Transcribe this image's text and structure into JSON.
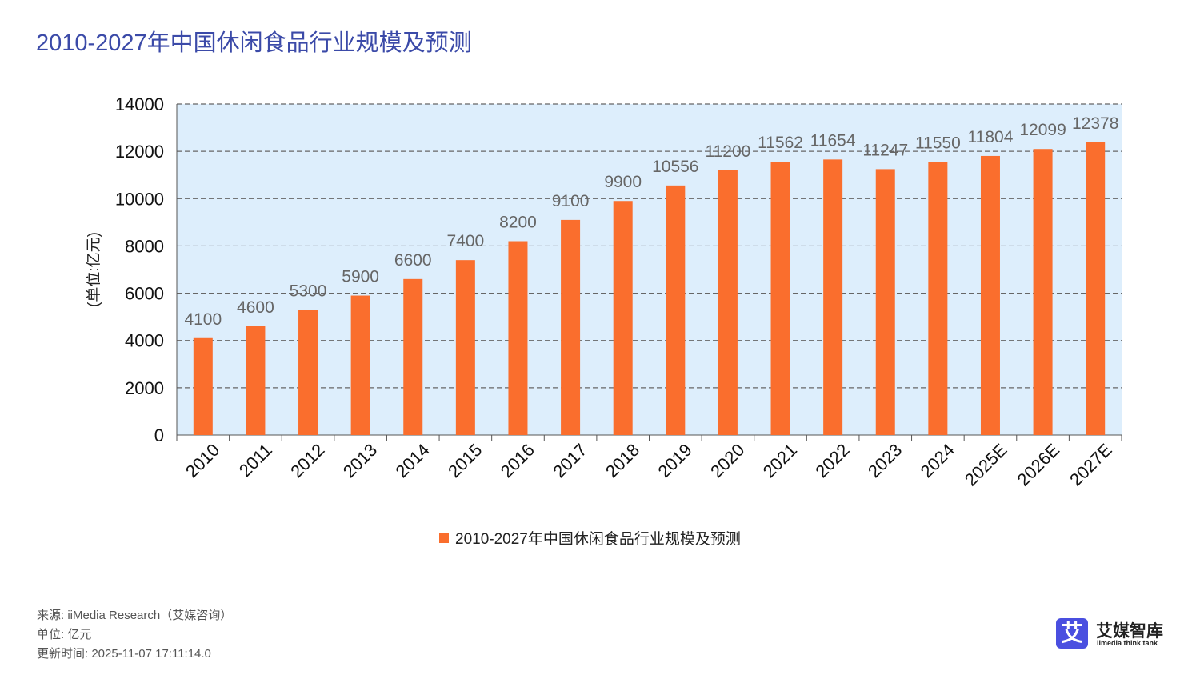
{
  "title": "2010-2027年中国休闲食品行业规模及预测",
  "footer": {
    "source": "来源: iiMedia Research（艾媒咨询）",
    "unit": "单位: 亿元",
    "updated": "更新时间: 2025-11-07 17:11:14.0"
  },
  "logo": {
    "mark": "艾",
    "name": "艾媒智库",
    "tagline": "iimedia think tank"
  },
  "chart_data": {
    "type": "bar",
    "title": "",
    "ylabel": "(单位:亿元)",
    "xlabel": "",
    "ylim": [
      0,
      14000
    ],
    "yticks": [
      0,
      2000,
      4000,
      6000,
      8000,
      10000,
      12000,
      14000
    ],
    "grid": true,
    "legend_position": "bottom",
    "categories": [
      "2010",
      "2011",
      "2012",
      "2013",
      "2014",
      "2015",
      "2016",
      "2017",
      "2018",
      "2019",
      "2020",
      "2021",
      "2022",
      "2023",
      "2024",
      "2025E",
      "2026E",
      "2027E"
    ],
    "series": [
      {
        "name": "2010-2027年中国休闲食品行业规模及预测",
        "color": "#fa6e2d",
        "values": [
          4100,
          4600,
          5300,
          5900,
          6600,
          7400,
          8200,
          9100,
          9900,
          10556,
          11200,
          11562,
          11654,
          11247,
          11550,
          11804,
          12099,
          12378
        ]
      }
    ],
    "plot_background": "#ddeefc"
  }
}
